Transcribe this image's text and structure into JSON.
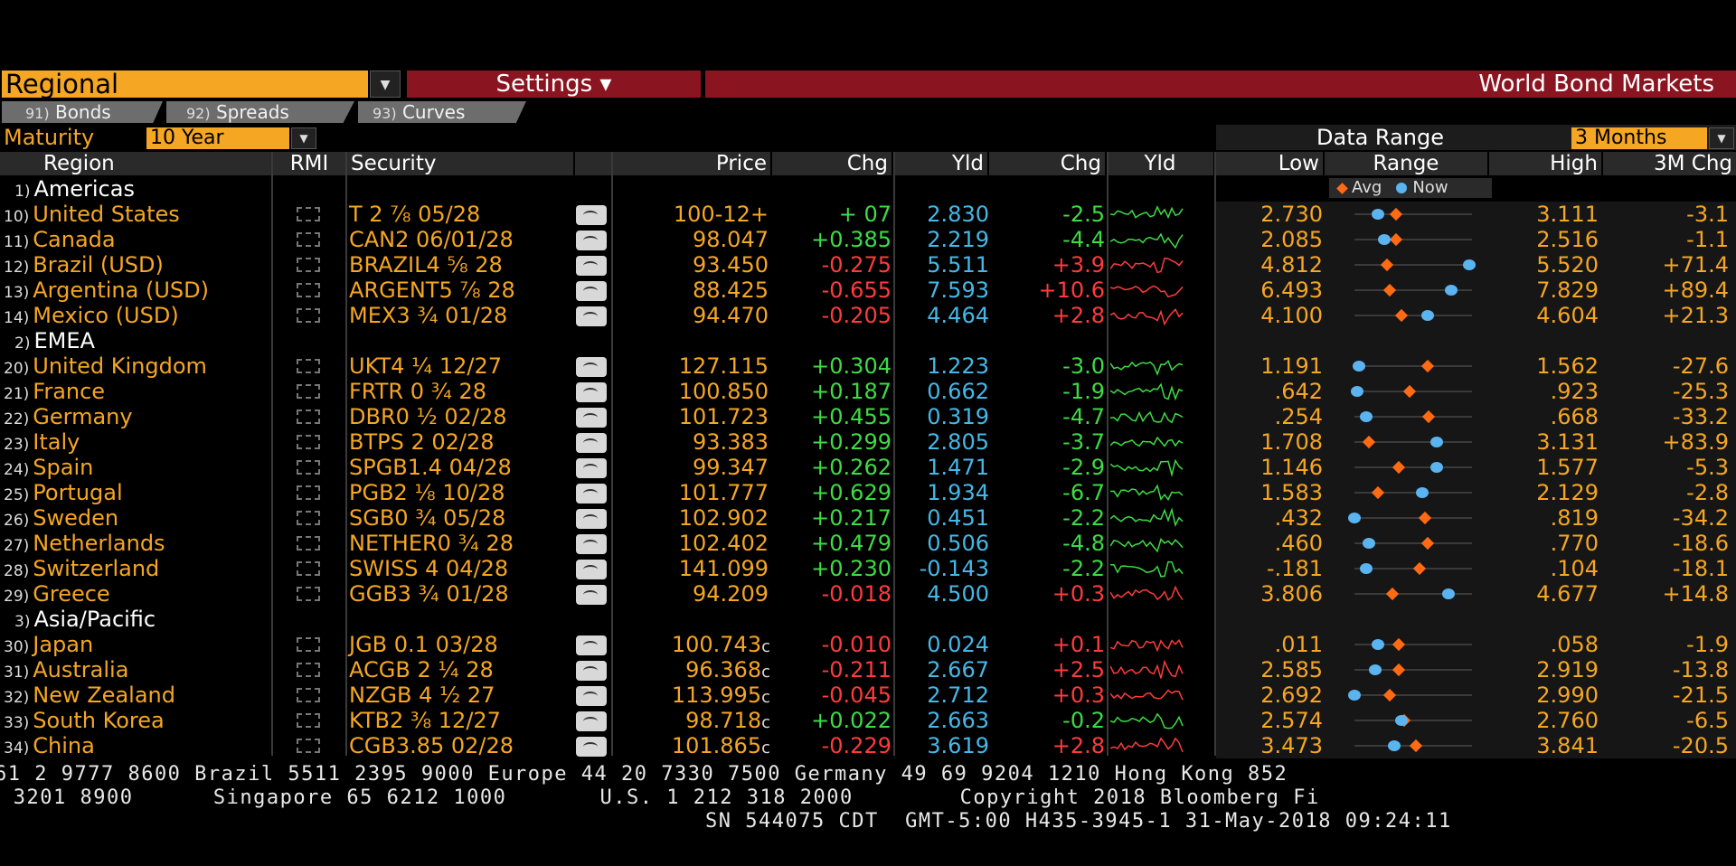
{
  "topbar": {
    "regional": "Regional",
    "settings": "Settings ▾",
    "title": "World Bond Markets"
  },
  "tabs": [
    {
      "num": "91)",
      "label": "Bonds"
    },
    {
      "num": "92)",
      "label": "Spreads"
    },
    {
      "num": "93)",
      "label": "Curves"
    }
  ],
  "maturity": {
    "label": "Maturity",
    "value": "10 Year"
  },
  "data_range": {
    "label": "Data Range",
    "value": "3 Months"
  },
  "headers": {
    "region": "Region",
    "rmi": "RMI",
    "security": "Security",
    "price": "Price",
    "chg": "Chg",
    "yld": "Yld",
    "chg2": "Chg",
    "yld_spark": "Yld",
    "low": "Low",
    "range": "Range",
    "high": "High",
    "chg3m": "3M Chg",
    "legend_avg": "Avg",
    "legend_now": "Now"
  },
  "groups": [
    {
      "idx": "1)",
      "name": "Americas",
      "rows": [
        {
          "idx": "10)",
          "region": "United States",
          "security": "T 2 ⅞ 05/28",
          "price": "100-12+",
          "chg": "+ 07",
          "yld": "2.830",
          "ychg": "-2.5",
          "low": "2.730",
          "high": "3.111",
          "m3": "-3.1",
          "avg": 0.35,
          "now": 0.2,
          "chgColor": "green",
          "ychgColor": "green"
        },
        {
          "idx": "11)",
          "region": "Canada",
          "security": "CAN2 06/01/28",
          "price": "98.047",
          "chg": "+0.385",
          "yld": "2.219",
          "ychg": "-4.4",
          "low": "2.085",
          "high": "2.516",
          "m3": "-1.1",
          "avg": 0.35,
          "now": 0.25,
          "chgColor": "green",
          "ychgColor": "green"
        },
        {
          "idx": "12)",
          "region": "Brazil (USD)",
          "security": "BRAZIL4 ⅝ 28",
          "price": "93.450",
          "chg": "-0.275",
          "yld": "5.511",
          "ychg": "+3.9",
          "low": "4.812",
          "high": "5.520",
          "m3": "+71.4",
          "avg": 0.28,
          "now": 0.98,
          "chgColor": "red",
          "ychgColor": "red"
        },
        {
          "idx": "13)",
          "region": "Argentina (USD)",
          "security": "ARGENT5 ⅞ 28",
          "price": "88.425",
          "chg": "-0.655",
          "yld": "7.593",
          "ychg": "+10.6",
          "low": "6.493",
          "high": "7.829",
          "m3": "+89.4",
          "avg": 0.3,
          "now": 0.82,
          "chgColor": "red",
          "ychgColor": "red"
        },
        {
          "idx": "14)",
          "region": "Mexico (USD)",
          "security": "MEX3 ¾ 01/28",
          "price": "94.470",
          "chg": "-0.205",
          "yld": "4.464",
          "ychg": "+2.8",
          "low": "4.100",
          "high": "4.604",
          "m3": "+21.3",
          "avg": 0.4,
          "now": 0.62,
          "chgColor": "red",
          "ychgColor": "red"
        }
      ]
    },
    {
      "idx": "2)",
      "name": "EMEA",
      "rows": [
        {
          "idx": "20)",
          "region": "United Kingdom",
          "security": "UKT4 ¼ 12/27",
          "price": "127.115",
          "chg": "+0.304",
          "yld": "1.223",
          "ychg": "-3.0",
          "low": "1.191",
          "high": "1.562",
          "m3": "-27.6",
          "avg": 0.62,
          "now": 0.04,
          "chgColor": "green",
          "ychgColor": "green"
        },
        {
          "idx": "21)",
          "region": "France",
          "security": "FRTR 0 ¾ 28",
          "price": "100.850",
          "chg": "+0.187",
          "yld": "0.662",
          "ychg": "-1.9",
          "low": ".642",
          "high": ".923",
          "m3": "-25.3",
          "avg": 0.47,
          "now": 0.02,
          "chgColor": "green",
          "ychgColor": "green"
        },
        {
          "idx": "22)",
          "region": "Germany",
          "security": "DBR0 ½ 02/28",
          "price": "101.723",
          "chg": "+0.455",
          "yld": "0.319",
          "ychg": "-4.7",
          "low": ".254",
          "high": ".668",
          "m3": "-33.2",
          "avg": 0.63,
          "now": 0.1,
          "chgColor": "green",
          "ychgColor": "green"
        },
        {
          "idx": "23)",
          "region": "Italy",
          "security": "BTPS 2 02/28",
          "price": "93.383",
          "chg": "+0.299",
          "yld": "2.805",
          "ychg": "-3.7",
          "low": "1.708",
          "high": "3.131",
          "m3": "+83.9",
          "avg": 0.12,
          "now": 0.7,
          "chgColor": "green",
          "ychgColor": "green"
        },
        {
          "idx": "24)",
          "region": "Spain",
          "security": "SPGB1.4 04/28",
          "price": "99.347",
          "chg": "+0.262",
          "yld": "1.471",
          "ychg": "-2.9",
          "low": "1.146",
          "high": "1.577",
          "m3": "-5.3",
          "avg": 0.38,
          "now": 0.7,
          "chgColor": "green",
          "ychgColor": "green"
        },
        {
          "idx": "25)",
          "region": "Portugal",
          "security": "PGB2 ⅛ 10/28",
          "price": "101.777",
          "chg": "+0.629",
          "yld": "1.934",
          "ychg": "-6.7",
          "low": "1.583",
          "high": "2.129",
          "m3": "-2.8",
          "avg": 0.2,
          "now": 0.58,
          "chgColor": "green",
          "ychgColor": "green"
        },
        {
          "idx": "26)",
          "region": "Sweden",
          "security": "SGB0 ¾ 05/28",
          "price": "102.902",
          "chg": "+0.217",
          "yld": "0.451",
          "ychg": "-2.2",
          "low": ".432",
          "high": ".819",
          "m3": "-34.2",
          "avg": 0.6,
          "now": 0.0,
          "chgColor": "green",
          "ychgColor": "green"
        },
        {
          "idx": "27)",
          "region": "Netherlands",
          "security": "NETHER0 ¾ 28",
          "price": "102.402",
          "chg": "+0.479",
          "yld": "0.506",
          "ychg": "-4.8",
          "low": ".460",
          "high": ".770",
          "m3": "-18.6",
          "avg": 0.62,
          "now": 0.12,
          "chgColor": "green",
          "ychgColor": "green"
        },
        {
          "idx": "28)",
          "region": "Switzerland",
          "security": "SWISS 4 04/28",
          "price": "141.099",
          "chg": "+0.230",
          "yld": "-0.143",
          "ychg": "-2.2",
          "low": "-.181",
          "high": ".104",
          "m3": "-18.1",
          "avg": 0.55,
          "now": 0.1,
          "chgColor": "green",
          "ychgColor": "green"
        },
        {
          "idx": "29)",
          "region": "Greece",
          "security": "GGB3 ¾ 01/28",
          "price": "94.209",
          "chg": "-0.018",
          "yld": "4.500",
          "ychg": "+0.3",
          "low": "3.806",
          "high": "4.677",
          "m3": "+14.8",
          "avg": 0.32,
          "now": 0.8,
          "chgColor": "red",
          "ychgColor": "red"
        }
      ]
    },
    {
      "idx": "3)",
      "name": "Asia/Pacific",
      "rows": [
        {
          "idx": "30)",
          "region": "Japan",
          "security": "JGB 0.1 03/28",
          "price": "100.743",
          "chg": "-0.010",
          "yld": "0.024",
          "ychg": "+0.1",
          "low": ".011",
          "high": ".058",
          "m3": "-1.9",
          "avg": 0.38,
          "now": 0.2,
          "chgColor": "red",
          "ychgColor": "red",
          "c": true
        },
        {
          "idx": "31)",
          "region": "Australia",
          "security": "ACGB 2 ¼ 28",
          "price": "96.368",
          "chg": "-0.211",
          "yld": "2.667",
          "ychg": "+2.5",
          "low": "2.585",
          "high": "2.919",
          "m3": "-13.8",
          "avg": 0.38,
          "now": 0.18,
          "chgColor": "red",
          "ychgColor": "red",
          "c": true
        },
        {
          "idx": "32)",
          "region": "New Zealand",
          "security": "NZGB 4 ½ 27",
          "price": "113.995",
          "chg": "-0.045",
          "yld": "2.712",
          "ychg": "+0.3",
          "low": "2.692",
          "high": "2.990",
          "m3": "-21.5",
          "avg": 0.3,
          "now": 0.0,
          "chgColor": "red",
          "ychgColor": "red",
          "c": true
        },
        {
          "idx": "33)",
          "region": "South Korea",
          "security": "KTB2 ⅜ 12/27",
          "price": "98.718",
          "chg": "+0.022",
          "yld": "2.663",
          "ychg": "-0.2",
          "low": "2.574",
          "high": "2.760",
          "m3": "-6.5",
          "avg": 0.42,
          "now": 0.4,
          "chgColor": "green",
          "ychgColor": "green",
          "c": true
        },
        {
          "idx": "34)",
          "region": "China",
          "security": "CGB3.85 02/28",
          "price": "101.865",
          "chg": "-0.229",
          "yld": "3.619",
          "ychg": "+2.8",
          "low": "3.473",
          "high": "3.841",
          "m3": "-20.5",
          "avg": 0.52,
          "now": 0.34,
          "chgColor": "red",
          "ychgColor": "red",
          "c": true
        }
      ]
    }
  ],
  "footer": {
    "line1": "61 2 9777 8600 Brazil 5511 2395 9000 Europe 44 20 7330 7500 Germany 49 69 9204 1210 Hong Kong 852",
    "line2": " 3201 8900      Singapore 65 6212 1000       U.S. 1 212 318 2000        Copyright 2018 Bloomberg Fi",
    "line3": "SN 544075 CDT  GMT-5:00 H435-3945-1 31-May-2018 09:24:11"
  }
}
